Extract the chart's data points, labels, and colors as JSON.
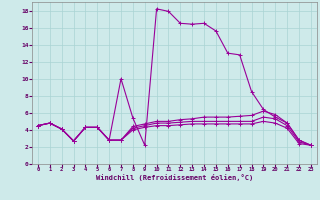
{
  "xlabel": "Windchill (Refroidissement éolien,°C)",
  "background_color": "#ceeaea",
  "grid_color": "#aad4d4",
  "line_color": "#990099",
  "xlim": [
    -0.5,
    23.5
  ],
  "ylim": [
    0,
    19
  ],
  "xticks": [
    0,
    1,
    2,
    3,
    4,
    5,
    6,
    7,
    8,
    9,
    10,
    11,
    12,
    13,
    14,
    15,
    16,
    17,
    18,
    19,
    20,
    21,
    22,
    23
  ],
  "yticks": [
    0,
    2,
    4,
    6,
    8,
    10,
    12,
    14,
    16,
    18
  ],
  "series1_x": [
    0,
    1,
    2,
    3,
    4,
    5,
    6,
    7,
    8,
    9,
    10,
    11,
    12,
    13,
    14,
    15,
    16,
    17,
    18,
    19,
    20,
    21,
    22,
    23
  ],
  "series1_y": [
    4.5,
    4.8,
    4.1,
    2.7,
    4.3,
    4.3,
    2.8,
    10.0,
    5.4,
    2.2,
    18.2,
    17.9,
    16.5,
    16.4,
    16.5,
    15.6,
    13.0,
    12.8,
    8.5,
    6.4,
    5.5,
    4.8,
    2.8,
    2.2
  ],
  "series2_x": [
    0,
    1,
    2,
    3,
    4,
    5,
    6,
    7,
    8,
    9,
    10,
    11,
    12,
    13,
    14,
    15,
    16,
    17,
    18,
    19,
    20,
    21,
    22,
    23
  ],
  "series2_y": [
    4.5,
    4.8,
    4.1,
    2.7,
    4.3,
    4.3,
    2.8,
    2.8,
    4.4,
    4.7,
    5.0,
    5.0,
    5.2,
    5.3,
    5.5,
    5.5,
    5.5,
    5.6,
    5.7,
    6.2,
    5.8,
    4.8,
    2.8,
    2.2
  ],
  "series3_x": [
    0,
    1,
    2,
    3,
    4,
    5,
    6,
    7,
    8,
    9,
    10,
    11,
    12,
    13,
    14,
    15,
    16,
    17,
    18,
    19,
    20,
    21,
    22,
    23
  ],
  "series3_y": [
    4.5,
    4.8,
    4.1,
    2.7,
    4.3,
    4.3,
    2.8,
    2.8,
    4.2,
    4.5,
    4.8,
    4.8,
    4.9,
    5.0,
    5.0,
    5.0,
    5.0,
    5.0,
    5.0,
    5.5,
    5.3,
    4.5,
    2.6,
    2.2
  ],
  "series4_x": [
    0,
    1,
    2,
    3,
    4,
    5,
    6,
    7,
    8,
    9,
    10,
    11,
    12,
    13,
    14,
    15,
    16,
    17,
    18,
    19,
    20,
    21,
    22,
    23
  ],
  "series4_y": [
    4.5,
    4.8,
    4.1,
    2.7,
    4.3,
    4.3,
    2.8,
    2.8,
    4.0,
    4.3,
    4.5,
    4.5,
    4.6,
    4.7,
    4.7,
    4.7,
    4.7,
    4.7,
    4.7,
    5.0,
    4.8,
    4.2,
    2.4,
    2.2
  ]
}
